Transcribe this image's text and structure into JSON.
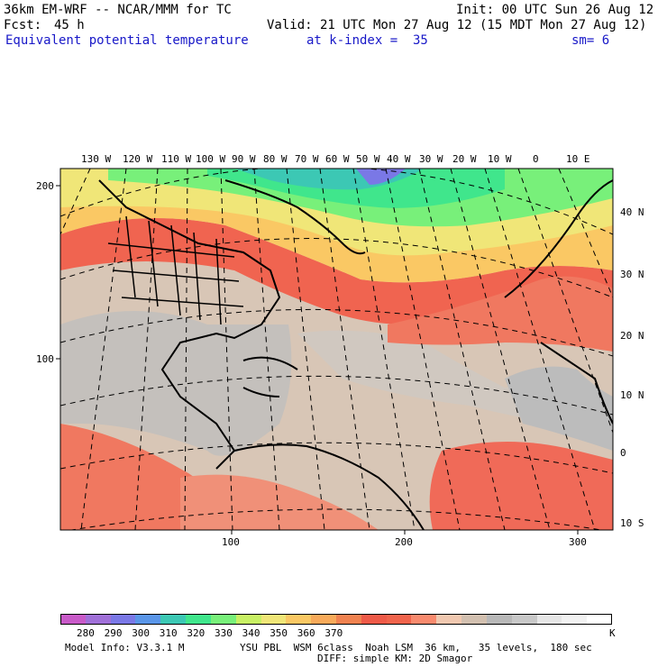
{
  "header": {
    "title": "36km EM-WRF -- NCAR/MMM for TC",
    "init": "Init: 00 UTC Sun 26 Aug 12",
    "fcst_label": "Fcst:",
    "fcst_value": "45 h",
    "valid": "Valid: 21 UTC Mon 27 Aug 12 (15 MDT Mon 27 Aug 12)",
    "field": "Equivalent potential temperature",
    "level": "at k-index =  35",
    "smoothing": "sm= 6"
  },
  "map": {
    "top_lon_labels": [
      "130 W",
      "120 W",
      "110 W",
      "100 W",
      "90 W",
      "80 W",
      "70 W",
      "60 W",
      "50 W",
      "40 W",
      "30 W",
      "20 W",
      "10 W",
      "0",
      "10 E"
    ],
    "right_lat_labels": [
      "40 N",
      "30 N",
      "20 N",
      "10 N",
      "0",
      "10 S"
    ],
    "left_grid_labels": [
      "200",
      "100"
    ],
    "bottom_grid_labels": [
      "100",
      "200",
      "300"
    ]
  },
  "colorbar": {
    "colors": [
      "#c85ac8",
      "#a070d8",
      "#7a78e6",
      "#5a96e8",
      "#3cc8b4",
      "#40e68c",
      "#78f07a",
      "#c8f064",
      "#f0e678",
      "#fac864",
      "#f8aa5a",
      "#f08250",
      "#ee5a48",
      "#f0644c",
      "#f88a6e",
      "#f0c8b0",
      "#d2c0b0",
      "#b8b8b8",
      "#c8c8c8",
      "#e6e6e6",
      "#f2f2f2",
      "#ffffff"
    ],
    "tick_labels": [
      "280",
      "290",
      "300",
      "310",
      "320",
      "330",
      "340",
      "350",
      "360",
      "370"
    ],
    "unit": "K"
  },
  "footer": {
    "model_info": "Model Info: V3.3.1 M",
    "physics": "YSU PBL  WSM 6class  Noah LSM  36 km,   35 levels,  180 sec",
    "diffusion": "DIFF: simple KM: 2D Smagor"
  }
}
